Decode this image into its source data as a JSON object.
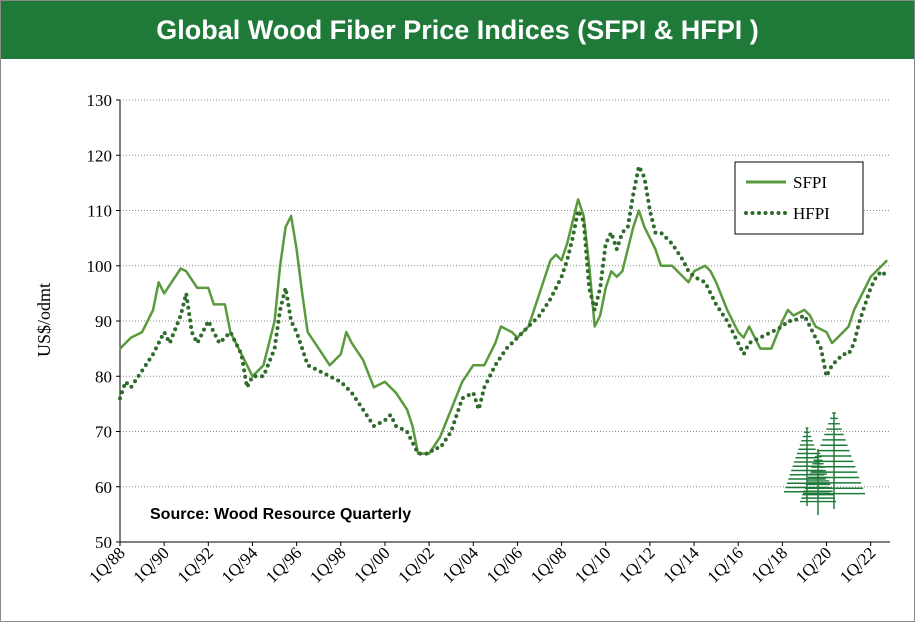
{
  "chart_data": {
    "type": "line",
    "title": "Global Wood Fiber Price Indices (SFPI & HFPI )",
    "ylabel": "US$/odmt",
    "xlabel": "",
    "ylim": [
      50,
      130
    ],
    "yticks": [
      "50",
      "60",
      "70",
      "80",
      "90",
      "100",
      "110",
      "120",
      "130"
    ],
    "grid": "horizontal dotted",
    "legend": "top-right",
    "xticks": [
      "1Q/88",
      "1Q/90",
      "1Q/92",
      "1Q/94",
      "1Q/96",
      "1Q/98",
      "1Q/00",
      "1Q/02",
      "1Q/04",
      "1Q/06",
      "1Q/08",
      "1Q/10",
      "1Q/12",
      "1Q/14",
      "1Q/16",
      "1Q/18",
      "1Q/20",
      "1Q/22"
    ],
    "source": "Source: Wood Resource Quarterly",
    "colors": {
      "sfpi": "#5a9a3e",
      "hfpi": "#2f6b2a",
      "title_bg": "#1f7a3a"
    },
    "series": [
      {
        "name": "SFPI",
        "points": [
          [
            1988.0,
            85
          ],
          [
            1988.5,
            87
          ],
          [
            1989.0,
            88
          ],
          [
            1989.5,
            92
          ],
          [
            1989.75,
            97
          ],
          [
            1990.0,
            95
          ],
          [
            1990.5,
            98
          ],
          [
            1990.75,
            99.5
          ],
          [
            1991.0,
            99
          ],
          [
            1991.5,
            96
          ],
          [
            1992.0,
            96
          ],
          [
            1992.25,
            93
          ],
          [
            1992.75,
            93
          ],
          [
            1993.0,
            88
          ],
          [
            1993.5,
            84
          ],
          [
            1993.75,
            82
          ],
          [
            1994.0,
            80
          ],
          [
            1994.5,
            82
          ],
          [
            1995.0,
            90
          ],
          [
            1995.25,
            100
          ],
          [
            1995.5,
            107
          ],
          [
            1995.75,
            109
          ],
          [
            1996.0,
            103
          ],
          [
            1996.25,
            95
          ],
          [
            1996.5,
            88
          ],
          [
            1997.0,
            85
          ],
          [
            1997.5,
            82
          ],
          [
            1998.0,
            84
          ],
          [
            1998.25,
            88
          ],
          [
            1998.5,
            86
          ],
          [
            1999.0,
            83
          ],
          [
            1999.5,
            78
          ],
          [
            2000.0,
            79
          ],
          [
            2000.5,
            77
          ],
          [
            2001.0,
            74
          ],
          [
            2001.25,
            71
          ],
          [
            2001.5,
            66
          ],
          [
            2002.0,
            66
          ],
          [
            2002.5,
            69
          ],
          [
            2003.0,
            74
          ],
          [
            2003.5,
            79
          ],
          [
            2004.0,
            82
          ],
          [
            2004.5,
            82
          ],
          [
            2005.0,
            86
          ],
          [
            2005.25,
            89
          ],
          [
            2005.75,
            88
          ],
          [
            2006.0,
            87
          ],
          [
            2006.5,
            89
          ],
          [
            2007.0,
            95
          ],
          [
            2007.5,
            101
          ],
          [
            2007.75,
            102
          ],
          [
            2008.0,
            101
          ],
          [
            2008.25,
            104
          ],
          [
            2008.5,
            108
          ],
          [
            2008.75,
            112
          ],
          [
            2009.0,
            109
          ],
          [
            2009.25,
            100
          ],
          [
            2009.5,
            89
          ],
          [
            2009.75,
            91
          ],
          [
            2010.0,
            96
          ],
          [
            2010.25,
            99
          ],
          [
            2010.5,
            98
          ],
          [
            2010.75,
            99
          ],
          [
            2011.0,
            103
          ],
          [
            2011.25,
            107
          ],
          [
            2011.5,
            110
          ],
          [
            2011.75,
            107
          ],
          [
            2012.0,
            105
          ],
          [
            2012.25,
            103
          ],
          [
            2012.5,
            100
          ],
          [
            2013.0,
            100
          ],
          [
            2013.5,
            98
          ],
          [
            2013.75,
            97
          ],
          [
            2014.0,
            99
          ],
          [
            2014.5,
            100
          ],
          [
            2014.75,
            99
          ],
          [
            2015.0,
            97
          ],
          [
            2015.5,
            92
          ],
          [
            2016.0,
            88
          ],
          [
            2016.25,
            87
          ],
          [
            2016.5,
            89
          ],
          [
            2017.0,
            85
          ],
          [
            2017.5,
            85
          ],
          [
            2018.0,
            90
          ],
          [
            2018.25,
            92
          ],
          [
            2018.5,
            91
          ],
          [
            2019.0,
            92
          ],
          [
            2019.25,
            91
          ],
          [
            2019.5,
            89
          ],
          [
            2020.0,
            88
          ],
          [
            2020.25,
            86
          ],
          [
            2020.5,
            87
          ],
          [
            2020.75,
            88
          ],
          [
            2021.0,
            89
          ],
          [
            2021.25,
            92
          ],
          [
            2021.5,
            94
          ],
          [
            2022.0,
            98
          ],
          [
            2022.25,
            99
          ],
          [
            2022.5,
            100
          ],
          [
            2022.75,
            101
          ]
        ]
      },
      {
        "name": "HFPI",
        "points": [
          [
            1988.0,
            76
          ],
          [
            1988.25,
            79
          ],
          [
            1988.5,
            78
          ],
          [
            1989.0,
            81
          ],
          [
            1989.5,
            84
          ],
          [
            1990.0,
            88
          ],
          [
            1990.25,
            86
          ],
          [
            1990.75,
            91
          ],
          [
            1991.0,
            95
          ],
          [
            1991.25,
            88
          ],
          [
            1991.5,
            86
          ],
          [
            1992.0,
            90
          ],
          [
            1992.25,
            88
          ],
          [
            1992.5,
            86
          ],
          [
            1993.0,
            88
          ],
          [
            1993.5,
            84
          ],
          [
            1993.75,
            78
          ],
          [
            1994.0,
            80
          ],
          [
            1994.5,
            80
          ],
          [
            1995.0,
            85
          ],
          [
            1995.25,
            92
          ],
          [
            1995.5,
            96
          ],
          [
            1995.75,
            90
          ],
          [
            1996.0,
            88
          ],
          [
            1996.25,
            85
          ],
          [
            1996.5,
            82
          ],
          [
            1997.0,
            81
          ],
          [
            1997.5,
            80
          ],
          [
            1998.0,
            79
          ],
          [
            1998.5,
            77
          ],
          [
            1999.0,
            74
          ],
          [
            1999.5,
            71
          ],
          [
            2000.0,
            72
          ],
          [
            2000.25,
            73
          ],
          [
            2000.5,
            71
          ],
          [
            2001.0,
            70
          ],
          [
            2001.25,
            68
          ],
          [
            2001.5,
            66
          ],
          [
            2002.0,
            66
          ],
          [
            2002.25,
            67
          ],
          [
            2002.5,
            67
          ],
          [
            2003.0,
            70
          ],
          [
            2003.5,
            76
          ],
          [
            2004.0,
            77
          ],
          [
            2004.25,
            74
          ],
          [
            2004.5,
            78
          ],
          [
            2005.0,
            82
          ],
          [
            2005.5,
            85
          ],
          [
            2006.0,
            87
          ],
          [
            2006.5,
            89
          ],
          [
            2007.0,
            91
          ],
          [
            2007.5,
            94
          ],
          [
            2008.0,
            98
          ],
          [
            2008.25,
            101
          ],
          [
            2008.5,
            105
          ],
          [
            2008.75,
            110
          ],
          [
            2009.0,
            108
          ],
          [
            2009.25,
            96
          ],
          [
            2009.5,
            92
          ],
          [
            2009.75,
            96
          ],
          [
            2010.0,
            104
          ],
          [
            2010.25,
            106
          ],
          [
            2010.5,
            103
          ],
          [
            2010.75,
            106
          ],
          [
            2011.0,
            107
          ],
          [
            2011.25,
            113
          ],
          [
            2011.5,
            118
          ],
          [
            2011.75,
            116
          ],
          [
            2012.0,
            110
          ],
          [
            2012.25,
            106
          ],
          [
            2012.5,
            106
          ],
          [
            2013.0,
            104
          ],
          [
            2013.5,
            101
          ],
          [
            2013.75,
            99
          ],
          [
            2014.0,
            98
          ],
          [
            2014.5,
            97
          ],
          [
            2015.0,
            93
          ],
          [
            2015.5,
            90
          ],
          [
            2016.0,
            86
          ],
          [
            2016.25,
            84
          ],
          [
            2016.5,
            86
          ],
          [
            2017.0,
            87
          ],
          [
            2017.5,
            88
          ],
          [
            2018.0,
            89
          ],
          [
            2018.25,
            90
          ],
          [
            2018.5,
            90
          ],
          [
            2019.0,
            91
          ],
          [
            2019.25,
            89
          ],
          [
            2019.5,
            87
          ],
          [
            2019.75,
            85
          ],
          [
            2020.0,
            80
          ],
          [
            2020.25,
            82
          ],
          [
            2020.5,
            83
          ],
          [
            2020.75,
            84
          ],
          [
            2021.0,
            84
          ],
          [
            2021.25,
            86
          ],
          [
            2021.5,
            90
          ],
          [
            2022.0,
            96
          ],
          [
            2022.25,
            98
          ],
          [
            2022.5,
            99
          ],
          [
            2022.75,
            98
          ]
        ]
      }
    ]
  }
}
